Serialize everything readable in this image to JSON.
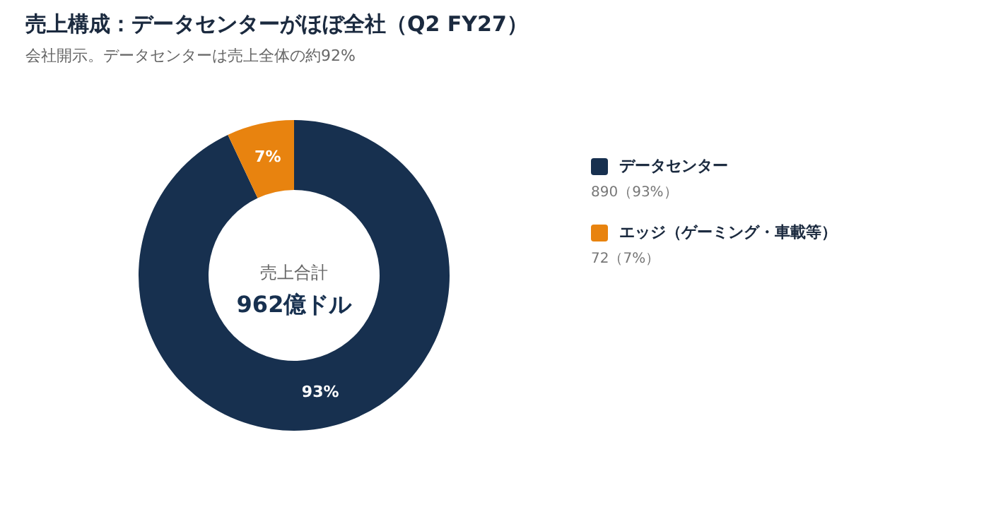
{
  "chart_data": {
    "type": "donut",
    "title": "売上構成：データセンターがほぼ全社（Q2 FY27）",
    "subtitle": "会社開示。データセンターは売上全体の約92%",
    "categories": [
      "データセンター",
      "エッジ（ゲーミング・車載等）"
    ],
    "values": [
      93,
      7
    ],
    "colors": [
      "#17304f",
      "#e8830f"
    ],
    "value_labels": [
      "93%",
      "7%"
    ],
    "legend": "right",
    "annotations": [
      "売上合計",
      "962億ドル",
      "890（93%）",
      "72（7%）"
    ]
  }
}
